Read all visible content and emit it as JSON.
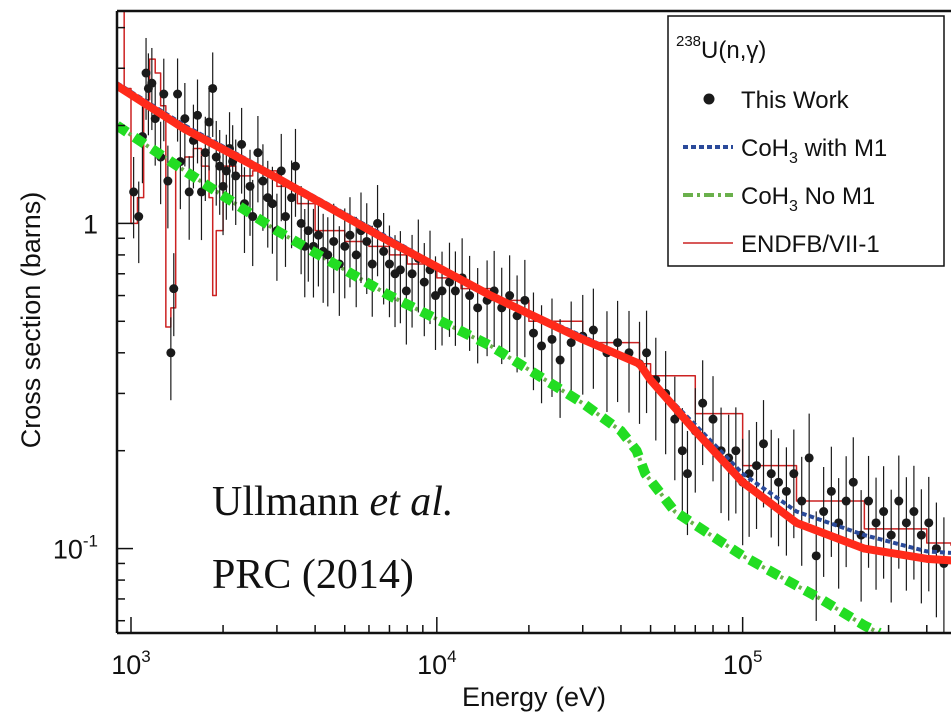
{
  "chart_data": {
    "type": "scatter",
    "title": "",
    "xlabel": "Energy (eV)",
    "ylabel": "Cross section (barns)",
    "xscale": "log",
    "yscale": "log",
    "xlim": [
      900,
      480000
    ],
    "ylim": [
      0.055,
      4.5
    ],
    "xticks": [
      {
        "value": 1000,
        "base": "10",
        "exp": "3"
      },
      {
        "value": 10000,
        "base": "10",
        "exp": "4"
      },
      {
        "value": 100000,
        "base": "10",
        "exp": "5"
      }
    ],
    "yticks": [
      {
        "value": 1,
        "base": "1",
        "exp": ""
      },
      {
        "value": 0.1,
        "base": "10",
        "exp": "-1"
      }
    ],
    "legend": {
      "position": "top-right",
      "title_sup": "238",
      "title_main": "U(n,γ)",
      "entries": [
        {
          "label": "This Work",
          "style": "points",
          "color": "#1a1a1a"
        },
        {
          "label": "CoH",
          "sub": "3",
          "label_rest": " with M1",
          "style": "dotted",
          "color": "#2a4a9a"
        },
        {
          "label": "CoH",
          "sub": "3",
          "label_rest": " No M1",
          "style": "dashdot",
          "color": "#6ab04c"
        },
        {
          "label": "ENDFB/VII-1",
          "style": "thin-line",
          "color": "#cc2222"
        }
      ]
    },
    "annotation": {
      "line1_normal": "Ullmann ",
      "line1_italic": "et al.",
      "line2": "PRC (2014)"
    },
    "series": [
      {
        "name": "This Work",
        "style": "points",
        "color": "#1a1a1a",
        "points": [
          [
            1020,
            1.25
          ],
          [
            1060,
            1.05
          ],
          [
            1090,
            1.85
          ],
          [
            1120,
            2.9
          ],
          [
            1140,
            2.6
          ],
          [
            1170,
            2.7
          ],
          [
            1200,
            2.1
          ],
          [
            1250,
            1.6
          ],
          [
            1280,
            2.5
          ],
          [
            1320,
            1.35
          ],
          [
            1350,
            0.4
          ],
          [
            1380,
            0.63
          ],
          [
            1420,
            2.5
          ],
          [
            1450,
            1.55
          ],
          [
            1500,
            2.1
          ],
          [
            1550,
            1.25
          ],
          [
            1600,
            1.8
          ],
          [
            1650,
            2.15
          ],
          [
            1700,
            1.25
          ],
          [
            1750,
            1.65
          ],
          [
            1800,
            2.05
          ],
          [
            1850,
            2.6
          ],
          [
            1900,
            1.6
          ],
          [
            1950,
            1.5
          ],
          [
            2000,
            1.3
          ],
          [
            2050,
            1.45
          ],
          [
            2100,
            1.7
          ],
          [
            2150,
            1.55
          ],
          [
            2200,
            1.4
          ],
          [
            2300,
            1.75
          ],
          [
            2350,
            1.15
          ],
          [
            2450,
            1.3
          ],
          [
            2500,
            1.05
          ],
          [
            2600,
            1.65
          ],
          [
            2700,
            1.35
          ],
          [
            2800,
            1.2
          ],
          [
            2900,
            1.15
          ],
          [
            3000,
            0.95
          ],
          [
            3100,
            1.45
          ],
          [
            3200,
            1.05
          ],
          [
            3350,
            1.2
          ],
          [
            3450,
            1.5
          ],
          [
            3600,
            1.0
          ],
          [
            3700,
            0.85
          ],
          [
            3800,
            0.95
          ],
          [
            3950,
            0.85
          ],
          [
            4100,
            0.92
          ],
          [
            4250,
            0.82
          ],
          [
            4400,
            0.8
          ],
          [
            4600,
            0.88
          ],
          [
            4800,
            0.75
          ],
          [
            5000,
            0.85
          ],
          [
            5200,
            0.92
          ],
          [
            5450,
            0.8
          ],
          [
            5650,
            0.95
          ],
          [
            5900,
            0.88
          ],
          [
            6150,
            0.75
          ],
          [
            6400,
            1.0
          ],
          [
            6700,
            0.82
          ],
          [
            7000,
            0.75
          ],
          [
            7300,
            0.7
          ],
          [
            7600,
            0.72
          ],
          [
            7950,
            0.62
          ],
          [
            8300,
            0.7
          ],
          [
            8700,
            0.78
          ],
          [
            9100,
            0.66
          ],
          [
            9500,
            0.72
          ],
          [
            9900,
            0.6
          ],
          [
            10400,
            0.62
          ],
          [
            11000,
            0.66
          ],
          [
            11500,
            0.62
          ],
          [
            12100,
            0.68
          ],
          [
            12800,
            0.6
          ],
          [
            13600,
            0.55
          ],
          [
            14600,
            0.58
          ],
          [
            15400,
            0.62
          ],
          [
            16300,
            0.55
          ],
          [
            17300,
            0.6
          ],
          [
            18300,
            0.52
          ],
          [
            19400,
            0.58
          ],
          [
            20700,
            0.46
          ],
          [
            22000,
            0.42
          ],
          [
            23800,
            0.44
          ],
          [
            25300,
            0.38
          ],
          [
            27500,
            0.43
          ],
          [
            30000,
            0.45
          ],
          [
            32500,
            0.47
          ],
          [
            36000,
            0.4
          ],
          [
            39000,
            0.43
          ],
          [
            42500,
            0.4
          ],
          [
            46000,
            0.37
          ],
          [
            48500,
            0.4
          ],
          [
            52000,
            0.33
          ],
          [
            56000,
            0.3
          ],
          [
            60000,
            0.25
          ],
          [
            63500,
            0.2
          ],
          [
            66000,
            0.17
          ],
          [
            70000,
            0.23
          ],
          [
            74000,
            0.28
          ],
          [
            80000,
            0.25
          ],
          [
            85000,
            0.2
          ],
          [
            90000,
            0.19
          ],
          [
            95000,
            0.2
          ],
          [
            100000,
            0.16
          ],
          [
            105000,
            0.17
          ],
          [
            111000,
            0.18
          ],
          [
            117000,
            0.21
          ],
          [
            124000,
            0.17
          ],
          [
            131000,
            0.16
          ],
          [
            139000,
            0.15
          ],
          [
            147000,
            0.17
          ],
          [
            156000,
            0.14
          ],
          [
            165000,
            0.19
          ],
          [
            174000,
            0.095
          ],
          [
            184000,
            0.13
          ],
          [
            195000,
            0.15
          ],
          [
            206000,
            0.12
          ],
          [
            218000,
            0.14
          ],
          [
            230000,
            0.16
          ],
          [
            244000,
            0.11
          ],
          [
            258000,
            0.14
          ],
          [
            273000,
            0.12
          ],
          [
            289000,
            0.13
          ],
          [
            306000,
            0.11
          ],
          [
            324000,
            0.14
          ],
          [
            343000,
            0.12
          ],
          [
            363000,
            0.13
          ],
          [
            384000,
            0.11
          ],
          [
            406000,
            0.12
          ],
          [
            430000,
            0.1
          ],
          [
            455000,
            0.09
          ]
        ]
      },
      {
        "name": "CoH3 with M1",
        "style": "dotted",
        "color": "#2a4a9a",
        "points": [
          [
            900,
            2.7
          ],
          [
            1500,
            2.0
          ],
          [
            3000,
            1.4
          ],
          [
            7000,
            0.9
          ],
          [
            15000,
            0.6
          ],
          [
            30000,
            0.45
          ],
          [
            46000,
            0.37
          ],
          [
            50000,
            0.33
          ],
          [
            70000,
            0.24
          ],
          [
            100000,
            0.17
          ],
          [
            150000,
            0.13
          ],
          [
            250000,
            0.11
          ],
          [
            400000,
            0.098
          ],
          [
            480000,
            0.097
          ]
        ]
      },
      {
        "name": "CoH3 No M1",
        "style": "dashdot",
        "color": "#6ab04c",
        "points": [
          [
            900,
            2.0
          ],
          [
            1500,
            1.45
          ],
          [
            3000,
            0.95
          ],
          [
            7000,
            0.6
          ],
          [
            15000,
            0.42
          ],
          [
            30000,
            0.28
          ],
          [
            40000,
            0.23
          ],
          [
            45000,
            0.2
          ],
          [
            48000,
            0.17
          ],
          [
            60000,
            0.13
          ],
          [
            100000,
            0.095
          ],
          [
            180000,
            0.07
          ],
          [
            250000,
            0.058
          ],
          [
            280000,
            0.055
          ]
        ]
      },
      {
        "name": "ENDFB/VII-1",
        "style": "thin-line",
        "color": "#cc2222",
        "points": [
          [
            920,
            4.5
          ],
          [
            950,
            2.6
          ],
          [
            1000,
            1.0
          ],
          [
            1050,
            1.2
          ],
          [
            1100,
            2.4
          ],
          [
            1150,
            3.2
          ],
          [
            1200,
            2.9
          ],
          [
            1250,
            2.3
          ],
          [
            1300,
            0.48
          ],
          [
            1350,
            0.55
          ],
          [
            1400,
            1.55
          ],
          [
            1500,
            1.6
          ],
          [
            1600,
            1.7
          ],
          [
            1700,
            1.5
          ],
          [
            1800,
            1.2
          ],
          [
            1850,
            0.6
          ],
          [
            1900,
            0.95
          ],
          [
            2000,
            1.5
          ],
          [
            2200,
            1.4
          ],
          [
            2500,
            1.45
          ],
          [
            3000,
            1.3
          ],
          [
            3500,
            1.15
          ],
          [
            4000,
            0.95
          ],
          [
            5000,
            0.88
          ],
          [
            6000,
            0.85
          ],
          [
            7000,
            0.8
          ],
          [
            8000,
            0.75
          ],
          [
            10000,
            0.68
          ],
          [
            12000,
            0.63
          ],
          [
            15000,
            0.58
          ],
          [
            20000,
            0.5
          ],
          [
            30000,
            0.43
          ],
          [
            46000,
            0.37
          ],
          [
            50000,
            0.34
          ],
          [
            70000,
            0.26
          ],
          [
            100000,
            0.18
          ],
          [
            150000,
            0.14
          ],
          [
            250000,
            0.115
          ],
          [
            400000,
            0.104
          ],
          [
            480000,
            0.102
          ]
        ]
      },
      {
        "name": "",
        "style": "thick-fit",
        "color": "#ff2a1a",
        "points": [
          [
            900,
            2.65
          ],
          [
            1500,
            1.95
          ],
          [
            3000,
            1.38
          ],
          [
            7000,
            0.88
          ],
          [
            15000,
            0.6
          ],
          [
            30000,
            0.44
          ],
          [
            46000,
            0.37
          ],
          [
            50000,
            0.33
          ],
          [
            70000,
            0.23
          ],
          [
            100000,
            0.16
          ],
          [
            150000,
            0.12
          ],
          [
            250000,
            0.1
          ],
          [
            400000,
            0.093
          ],
          [
            480000,
            0.092
          ]
        ]
      },
      {
        "name": "",
        "style": "thick-dash",
        "color": "#22dd22",
        "points": [
          [
            900,
            2.0
          ],
          [
            1500,
            1.45
          ],
          [
            3000,
            0.95
          ],
          [
            7000,
            0.6
          ],
          [
            15000,
            0.42
          ],
          [
            30000,
            0.28
          ],
          [
            40000,
            0.23
          ],
          [
            45000,
            0.2
          ],
          [
            48000,
            0.17
          ],
          [
            60000,
            0.13
          ],
          [
            100000,
            0.095
          ],
          [
            180000,
            0.07
          ],
          [
            250000,
            0.058
          ],
          [
            280000,
            0.055
          ]
        ]
      }
    ]
  }
}
